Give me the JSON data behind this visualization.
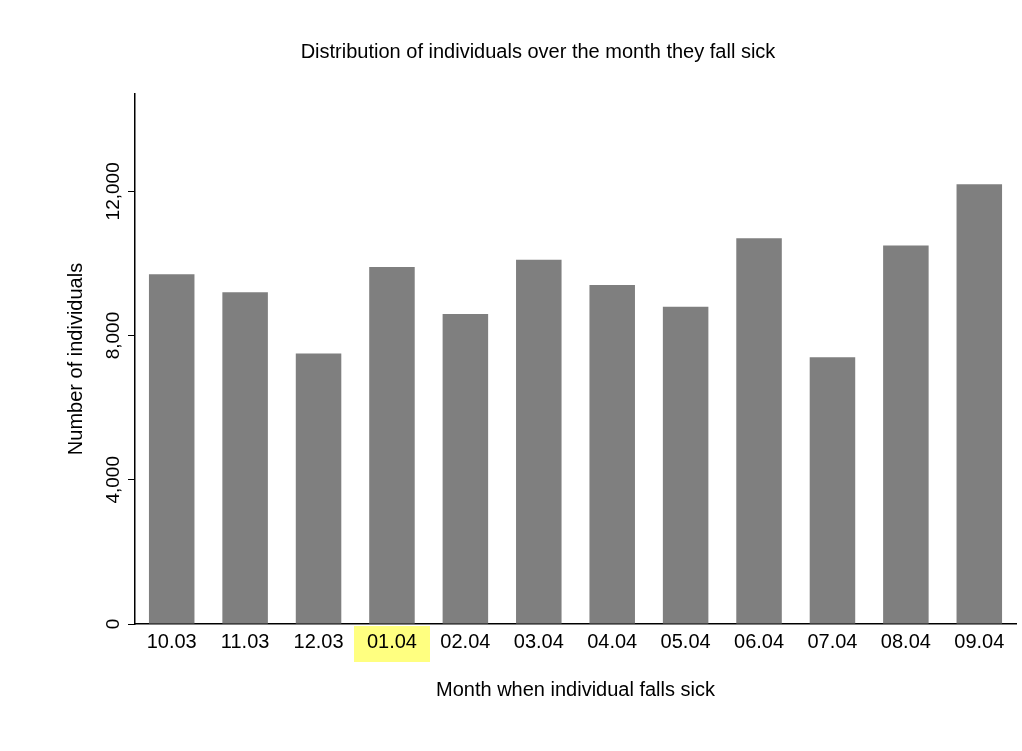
{
  "chart_data": {
    "type": "bar",
    "title": "Distribution of individuals over the month they fall sick",
    "xlabel": "Month when individual falls sick",
    "ylabel": "Number of individuals",
    "categories": [
      "10.03",
      "11.03",
      "12.03",
      "01.04",
      "02.04",
      "03.04",
      "04.04",
      "05.04",
      "06.04",
      "07.04",
      "08.04",
      "09.04"
    ],
    "values": [
      9700,
      9200,
      7500,
      9900,
      8600,
      10100,
      9400,
      8800,
      10700,
      7400,
      10500,
      12200
    ],
    "color": "#7f7f7f",
    "ylim": [
      0,
      14700
    ],
    "yticks": [
      0,
      {
        "value": 4000,
        "label": "4,000"
      },
      {
        "value": 8000,
        "label": "8,000"
      },
      {
        "value": 12000,
        "label": "12,000"
      }
    ],
    "grid": false,
    "legend": false
  }
}
